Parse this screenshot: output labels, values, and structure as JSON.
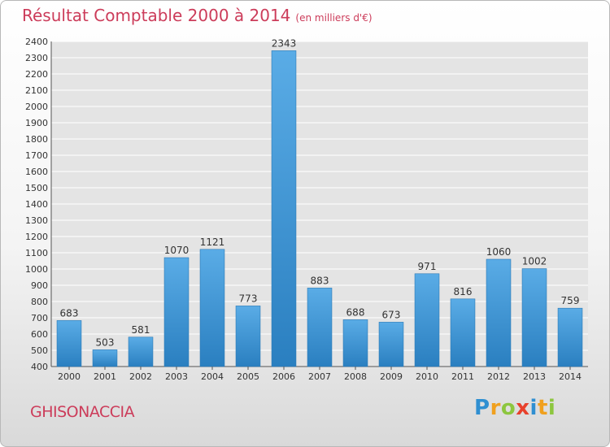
{
  "header": {
    "title": "Résultat Comptable 2000 à 2014",
    "subtitle": "(en milliers d'€)"
  },
  "footer": {
    "place": "GHISONACCIA",
    "logo_letters": [
      "P",
      "r",
      "o",
      "x",
      "i",
      "t",
      "i"
    ],
    "logo_colors": [
      "#2f8fd1",
      "#f0a01e",
      "#8dc63f",
      "#e8412c",
      "#2f8fd1",
      "#f0a01e",
      "#8dc63f"
    ]
  },
  "colors": {
    "title": "#cc3c5a",
    "bar_light": "#5aace6",
    "bar_dark": "#2a7fc0",
    "grid": "#ffffff",
    "plot_bg": "#e4e4e4"
  },
  "chart_data": {
    "type": "bar",
    "title": "Résultat Comptable 2000 à 2014",
    "xlabel": "",
    "ylabel": "",
    "categories": [
      "2000",
      "2001",
      "2002",
      "2003",
      "2004",
      "2005",
      "2006",
      "2007",
      "2008",
      "2009",
      "2010",
      "2011",
      "2012",
      "2013",
      "2014"
    ],
    "values": [
      683,
      503,
      581,
      1070,
      1121,
      773,
      2343,
      883,
      688,
      673,
      971,
      816,
      1060,
      1002,
      759
    ],
    "ylim": [
      400,
      2400
    ],
    "ytick_step": 100,
    "ytick_labels": [
      "400",
      "500",
      "600",
      "700",
      "800",
      "900",
      "1000",
      "1100",
      "1200",
      "1300",
      "1400",
      "1500",
      "1600",
      "1700",
      "1800",
      "1900",
      "2000",
      "2100",
      "2200",
      "2300",
      "2400"
    ],
    "grid": true
  }
}
